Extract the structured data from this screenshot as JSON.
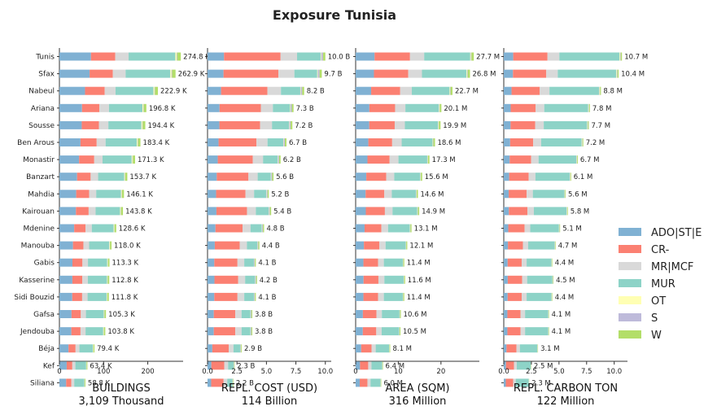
{
  "title": "Exposure Tunisia",
  "regions": [
    "Tunis",
    "Sfax",
    "Nabeul",
    "Ariana",
    "Sousse",
    "Ben Arous",
    "Monastir",
    "Banzart",
    "Mahdia",
    "Kairouan",
    "Mdenine",
    "Manouba",
    "Gabis",
    "Kasserine",
    "Sidi Bouzid",
    "Gafsa",
    "Jendouba",
    "Béja",
    "Kef",
    "Siliana"
  ],
  "colors": {
    "ADO|ST|E": "#80b1d3",
    "CR-": "#fb8072",
    "MR|MCF": "#d9d9d9",
    "MUR": "#8dd3c7",
    "OT": "#ffffb3",
    "S": "#bebada",
    "W": "#b3de69"
  },
  "legend": [
    "ADO|ST|E",
    "CR-",
    "MR|MCF",
    "MUR",
    "OT",
    "S",
    "W"
  ],
  "chart_data": [
    {
      "type": "bar",
      "orientation": "horizontal",
      "stacked": true,
      "xlabel": "BUILDINGS",
      "total_label": "3,109 Thousand",
      "xlim": [
        0,
        280
      ],
      "xticks": [
        "0",
        "100",
        "200"
      ],
      "xtick_values": [
        0,
        100,
        200
      ],
      "value_labels": [
        "274.8 K",
        "262.9 K",
        "222.9 K",
        "196.8 K",
        "194.4 K",
        "183.4 K",
        "171.3 K",
        "153.7 K",
        "146.1 K",
        "143.8 K",
        "128.6 K",
        "118.0 K",
        "113.3 K",
        "112.8 K",
        "111.8 K",
        "105.3 K",
        "103.8 K",
        "79.4 K",
        "63.4 K",
        "58.8 K"
      ],
      "totals": [
        274.8,
        262.9,
        222.9,
        196.8,
        194.4,
        183.4,
        171.3,
        153.7,
        146.1,
        143.8,
        128.6,
        118.0,
        113.3,
        112.8,
        111.8,
        105.3,
        103.8,
        79.4,
        63.4,
        58.8
      ],
      "share_pattern": "buildings"
    },
    {
      "type": "bar",
      "orientation": "horizontal",
      "stacked": true,
      "xlabel": "REPL. COST (USD)",
      "total_label": "114 Billion",
      "xlim": [
        0,
        10.5
      ],
      "xticks": [
        "0.0",
        "2.5",
        "5.0",
        "7.5",
        "10.0"
      ],
      "xtick_values": [
        0,
        2.5,
        5,
        7.5,
        10
      ],
      "value_labels": [
        "10.0 B",
        "9.7 B",
        "8.2 B",
        "7.3 B",
        "7.2 B",
        "6.7 B",
        "6.2 B",
        "5.6 B",
        "5.2 B",
        "5.4 B",
        "4.8 B",
        "4.4 B",
        "4.1 B",
        "4.2 B",
        "4.1 B",
        "3.8 B",
        "3.8 B",
        "2.9 B",
        "2.3 B",
        "2.2 B"
      ],
      "totals": [
        10.0,
        9.7,
        8.2,
        7.3,
        7.2,
        6.7,
        6.2,
        5.6,
        5.2,
        5.4,
        4.8,
        4.4,
        4.1,
        4.2,
        4.1,
        3.8,
        3.8,
        2.9,
        2.3,
        2.2
      ],
      "share_pattern": "cost"
    },
    {
      "type": "bar",
      "orientation": "horizontal",
      "stacked": true,
      "xlabel": "AREA (SQM)",
      "total_label": "316 Million",
      "xlim": [
        0,
        29
      ],
      "xticks": [
        "0",
        "10",
        "20"
      ],
      "xtick_values": [
        0,
        10,
        20
      ],
      "value_labels": [
        "27.7 M",
        "26.8 M",
        "22.7 M",
        "20.1 M",
        "19.9 M",
        "18.6 M",
        "17.3 M",
        "15.6 M",
        "14.6 M",
        "14.9 M",
        "13.1 M",
        "12.1 M",
        "11.4 M",
        "11.6 M",
        "11.4 M",
        "10.6 M",
        "10.5 M",
        "8.1 M",
        "6.4 M",
        "6.0 M"
      ],
      "totals": [
        27.7,
        26.8,
        22.7,
        20.1,
        19.9,
        18.6,
        17.3,
        15.6,
        14.6,
        14.9,
        13.1,
        12.1,
        11.4,
        11.6,
        11.4,
        10.6,
        10.5,
        8.1,
        6.4,
        6.0
      ],
      "share_pattern": "area"
    },
    {
      "type": "bar",
      "orientation": "horizontal",
      "stacked": true,
      "xlabel": "REPL. CARBON TON",
      "total_label": "122 Million",
      "xlim": [
        0,
        11.2
      ],
      "xticks": [
        "0.0",
        "2.5",
        "5.0",
        "7.5",
        "10.0"
      ],
      "xtick_values": [
        0,
        2.5,
        5,
        7.5,
        10
      ],
      "value_labels": [
        "10.7 M",
        "10.4 M",
        "8.8 M",
        "7.8 M",
        "7.7 M",
        "7.2 M",
        "6.7 M",
        "6.1 M",
        "5.6 M",
        "5.8 M",
        "5.1 M",
        "4.7 M",
        "4.4 M",
        "4.5 M",
        "4.4 M",
        "4.1 M",
        "4.1 M",
        "3.1 M",
        "2.5 M",
        "2.3 M"
      ],
      "totals": [
        10.7,
        10.4,
        8.8,
        7.8,
        7.7,
        7.2,
        6.7,
        6.1,
        5.6,
        5.8,
        5.1,
        4.7,
        4.4,
        4.5,
        4.4,
        4.1,
        4.1,
        3.1,
        2.5,
        2.3
      ],
      "share_pattern": "carbon"
    }
  ],
  "shares": {
    "buildings": {
      "ADO|ST|E": 0.26,
      "CR-": 0.2,
      "MR|MCF": 0.11,
      "MUR": 0.385,
      "OT": 0.01,
      "S": 0.005,
      "W": 0.03
    },
    "cost": {
      "ADO|ST|E": 0.14,
      "CR-": 0.48,
      "MR|MCF": 0.14,
      "MUR": 0.2,
      "OT": 0.005,
      "S": 0.015,
      "W": 0.02
    },
    "area": {
      "ADO|ST|E": 0.16,
      "CR-": 0.3,
      "MR|MCF": 0.12,
      "MUR": 0.39,
      "OT": 0.005,
      "S": 0.005,
      "W": 0.02
    },
    "carbon": {
      "ADO|ST|E": 0.08,
      "CR-": 0.29,
      "MR|MCF": 0.1,
      "MUR": 0.51,
      "OT": 0.005,
      "S": 0.005,
      "W": 0.01
    }
  }
}
